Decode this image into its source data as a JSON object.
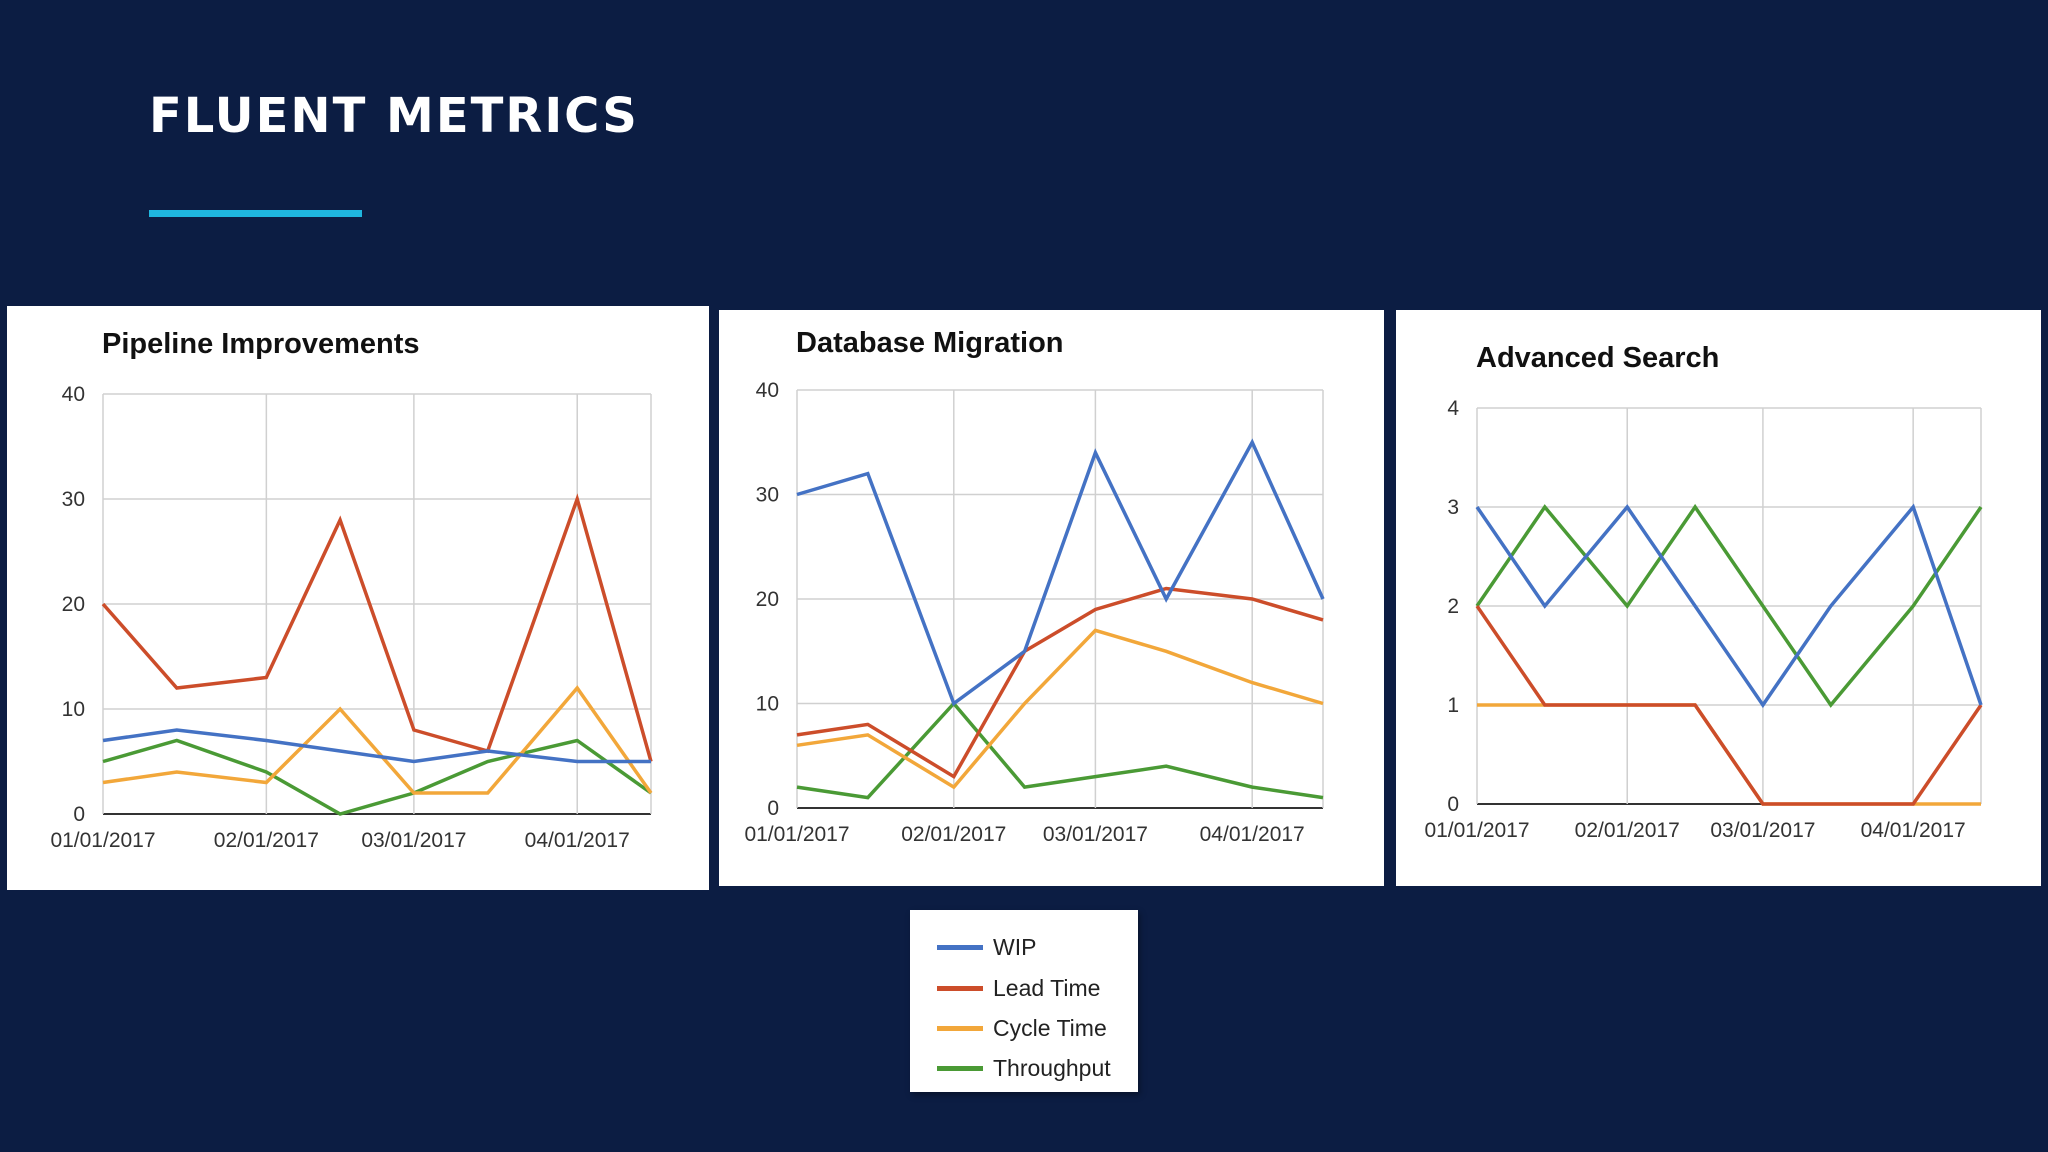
{
  "slide": {
    "title": "FLUENT METRICS",
    "accent_color": "#1fb6df",
    "background": "#0c1d43"
  },
  "legend": [
    {
      "label": "WIP",
      "color": "#4472c4"
    },
    {
      "label": "Lead Time",
      "color": "#cc4d2a"
    },
    {
      "label": "Cycle Time",
      "color": "#f2a73a"
    },
    {
      "label": "Throughput",
      "color": "#4a9a35"
    }
  ],
  "chart_data": [
    {
      "type": "line",
      "title": "Pipeline Improvements",
      "x": [
        "2017-01-01",
        "2017-01-15",
        "2017-02-01",
        "2017-02-15",
        "2017-03-01",
        "2017-03-15",
        "2017-04-01",
        "2017-04-15"
      ],
      "x_ticks": [
        "01/01/2017",
        "02/01/2017",
        "03/01/2017",
        "04/01/2017"
      ],
      "y_ticks": [
        0,
        10,
        20,
        30,
        40
      ],
      "ylim": [
        0,
        40
      ],
      "grid": true,
      "series": [
        {
          "name": "WIP",
          "color": "#4472c4",
          "values": [
            7,
            8,
            7,
            6,
            5,
            6,
            5,
            5
          ]
        },
        {
          "name": "Lead Time",
          "color": "#cc4d2a",
          "values": [
            20,
            12,
            13,
            28,
            8,
            6,
            30,
            5
          ]
        },
        {
          "name": "Cycle Time",
          "color": "#f2a73a",
          "values": [
            3,
            4,
            3,
            10,
            2,
            2,
            12,
            2
          ]
        },
        {
          "name": "Throughput",
          "color": "#4a9a35",
          "values": [
            5,
            7,
            4,
            0,
            2,
            5,
            7,
            2
          ]
        }
      ]
    },
    {
      "type": "line",
      "title": "Database Migration",
      "x": [
        "2017-01-01",
        "2017-01-15",
        "2017-02-01",
        "2017-02-15",
        "2017-03-01",
        "2017-03-15",
        "2017-04-01",
        "2017-04-15"
      ],
      "x_ticks": [
        "01/01/2017",
        "02/01/2017",
        "03/01/2017",
        "04/01/2017"
      ],
      "y_ticks": [
        0,
        10,
        20,
        30,
        40
      ],
      "ylim": [
        0,
        40
      ],
      "grid": true,
      "series": [
        {
          "name": "WIP",
          "color": "#4472c4",
          "values": [
            30,
            32,
            10,
            15,
            34,
            20,
            35,
            20
          ]
        },
        {
          "name": "Lead Time",
          "color": "#cc4d2a",
          "values": [
            7,
            8,
            3,
            15,
            19,
            21,
            20,
            18
          ]
        },
        {
          "name": "Cycle Time",
          "color": "#f2a73a",
          "values": [
            6,
            7,
            2,
            10,
            17,
            15,
            12,
            10
          ]
        },
        {
          "name": "Throughput",
          "color": "#4a9a35",
          "values": [
            2,
            1,
            10,
            2,
            3,
            4,
            2,
            1
          ]
        }
      ]
    },
    {
      "type": "line",
      "title": "Advanced Search",
      "x": [
        "2017-01-01",
        "2017-01-15",
        "2017-02-01",
        "2017-02-15",
        "2017-03-01",
        "2017-03-15",
        "2017-04-01",
        "2017-04-15"
      ],
      "x_ticks": [
        "01/01/2017",
        "02/01/2017",
        "03/01/2017",
        "04/01/2017"
      ],
      "y_ticks": [
        0,
        1,
        2,
        3,
        4
      ],
      "ylim": [
        0,
        4
      ],
      "grid": true,
      "series": [
        {
          "name": "WIP",
          "color": "#4472c4",
          "values": [
            3,
            2,
            3,
            2,
            1,
            2,
            3,
            1
          ]
        },
        {
          "name": "Lead Time",
          "color": "#cc4d2a",
          "values": [
            2,
            1,
            1,
            1,
            0,
            0,
            0,
            1
          ]
        },
        {
          "name": "Cycle Time",
          "color": "#f2a73a",
          "values": [
            1,
            1,
            1,
            1,
            0,
            0,
            0,
            0
          ]
        },
        {
          "name": "Throughput",
          "color": "#4a9a35",
          "values": [
            2,
            3,
            2,
            3,
            2,
            1,
            2,
            3
          ]
        }
      ]
    }
  ]
}
